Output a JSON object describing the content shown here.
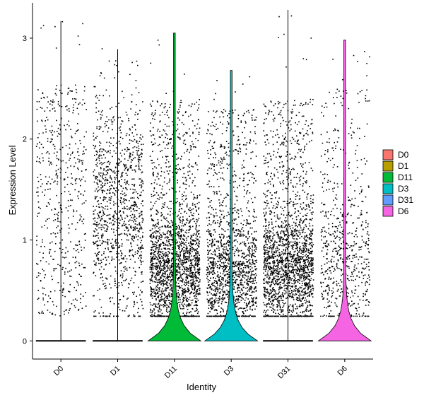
{
  "chart_data": {
    "type": "violin",
    "xlabel": "Identity",
    "ylabel": "Expression Level",
    "categories": [
      "D0",
      "D1",
      "D11",
      "D3",
      "D31",
      "D6"
    ],
    "ylim": [
      -0.18,
      3.35
    ],
    "yticks": [
      0,
      1,
      2,
      3
    ],
    "grid": false,
    "legend": {
      "placement": "right",
      "entries": [
        {
          "name": "D0",
          "color": "#F8766D"
        },
        {
          "name": "D1",
          "color": "#B79F00"
        },
        {
          "name": "D11",
          "color": "#00BA38"
        },
        {
          "name": "D3",
          "color": "#00BFC4"
        },
        {
          "name": "D31",
          "color": "#619CFF"
        },
        {
          "name": "D6",
          "color": "#F564E3"
        }
      ]
    },
    "series": [
      {
        "name": "D0",
        "color": "#F8766D",
        "max": 3.17,
        "violin_max_halfwidth": 0.0,
        "points_density": "sparse-uniform"
      },
      {
        "name": "D1",
        "color": "#B79F00",
        "max": 2.89,
        "violin_max_halfwidth": 0.0,
        "points_density": "medium"
      },
      {
        "name": "D11",
        "color": "#00BA38",
        "max": 3.05,
        "violin_max_halfwidth": 0.45,
        "points_density": "dense-low"
      },
      {
        "name": "D3",
        "color": "#00BFC4",
        "max": 2.68,
        "violin_max_halfwidth": 0.45,
        "points_density": "medium-low"
      },
      {
        "name": "D31",
        "color": "#619CFF",
        "max": 3.28,
        "violin_max_halfwidth": 0.0,
        "points_density": "dense-low"
      },
      {
        "name": "D6",
        "color": "#F564E3",
        "max": 2.98,
        "violin_max_halfwidth": 0.45,
        "points_density": "sparse"
      }
    ]
  }
}
